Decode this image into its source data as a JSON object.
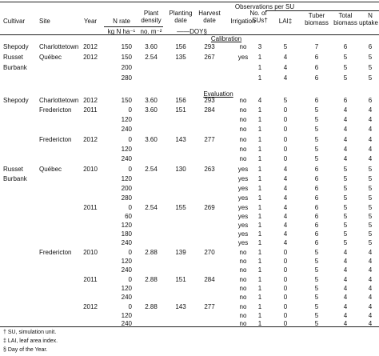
{
  "table": {
    "header": {
      "cultivar": "Cultivar",
      "site": "Site",
      "year": "Year",
      "n_rate": "N rate",
      "n_rate_unit": "kg N ha⁻¹",
      "plant_density_1": "Plant",
      "plant_density_2": "density",
      "plant_density_unit": "no. m⁻²",
      "planting_1": "Planting",
      "planting_2": "date",
      "harvest_1": "Harvest",
      "harvest_2": "date",
      "doy_unit": "——DOY§",
      "irrigation": "Irrigation",
      "nsu_1": "No. of",
      "nsu_2": "SUs†",
      "obs_group": "Observations per SU",
      "lai": "LAI‡",
      "tuber_1": "Tuber",
      "tuber_2": "biomass",
      "total_1": "Total",
      "total_2": "biomass",
      "nupt_1": "N",
      "nupt_2": "uptake"
    },
    "sections": {
      "calibration": "Calibration",
      "evaluation": "Evaluation"
    },
    "rows": [
      {
        "cultivar": "Shepody",
        "site": "Charlottetown",
        "year": "2012",
        "n": "150",
        "density": "3.60",
        "plant": "156",
        "harvest": "293",
        "irr": "no",
        "nsu": "3",
        "lai": "5",
        "tuber": "7",
        "total": "6",
        "nupt": "6"
      },
      {
        "cultivar": "Russet",
        "site": "Québec",
        "year": "2012",
        "n": "150",
        "density": "2.54",
        "plant": "135",
        "harvest": "267",
        "irr": "yes",
        "nsu": "1",
        "lai": "4",
        "tuber": "6",
        "total": "5",
        "nupt": "5"
      },
      {
        "cultivar": "Burbank",
        "site": "",
        "year": "",
        "n": "200",
        "density": "",
        "plant": "",
        "harvest": "",
        "irr": "",
        "nsu": "1",
        "lai": "4",
        "tuber": "6",
        "total": "5",
        "nupt": "5"
      },
      {
        "cultivar": "",
        "site": "",
        "year": "",
        "n": "280",
        "density": "",
        "plant": "",
        "harvest": "",
        "irr": "",
        "nsu": "1",
        "lai": "4",
        "tuber": "6",
        "total": "5",
        "nupt": "5"
      },
      {
        "cultivar": "Shepody",
        "site": "Charlottetown",
        "year": "2012",
        "n": "150",
        "density": "3.60",
        "plant": "156",
        "harvest": "293",
        "irr": "no",
        "nsu": "4",
        "lai": "5",
        "tuber": "6",
        "total": "6",
        "nupt": "6"
      },
      {
        "cultivar": "",
        "site": "Fredericton",
        "year": "2011",
        "n": "0",
        "density": "3.60",
        "plant": "151",
        "harvest": "284",
        "irr": "no",
        "nsu": "1",
        "lai": "0",
        "tuber": "5",
        "total": "4",
        "nupt": "4"
      },
      {
        "cultivar": "",
        "site": "",
        "year": "",
        "n": "120",
        "density": "",
        "plant": "",
        "harvest": "",
        "irr": "no",
        "nsu": "1",
        "lai": "0",
        "tuber": "5",
        "total": "4",
        "nupt": "4"
      },
      {
        "cultivar": "",
        "site": "",
        "year": "",
        "n": "240",
        "density": "",
        "plant": "",
        "harvest": "",
        "irr": "no",
        "nsu": "1",
        "lai": "0",
        "tuber": "5",
        "total": "4",
        "nupt": "4"
      },
      {
        "cultivar": "",
        "site": "Fredericton",
        "year": "2012",
        "n": "0",
        "density": "3.60",
        "plant": "143",
        "harvest": "277",
        "irr": "no",
        "nsu": "1",
        "lai": "0",
        "tuber": "5",
        "total": "4",
        "nupt": "4"
      },
      {
        "cultivar": "",
        "site": "",
        "year": "",
        "n": "120",
        "density": "",
        "plant": "",
        "harvest": "",
        "irr": "no",
        "nsu": "1",
        "lai": "0",
        "tuber": "5",
        "total": "4",
        "nupt": "4"
      },
      {
        "cultivar": "",
        "site": "",
        "year": "",
        "n": "240",
        "density": "",
        "plant": "",
        "harvest": "",
        "irr": "no",
        "nsu": "1",
        "lai": "0",
        "tuber": "5",
        "total": "4",
        "nupt": "4"
      },
      {
        "cultivar": "Russet",
        "site": "Québec",
        "year": "2010",
        "n": "0",
        "density": "2.54",
        "plant": "130",
        "harvest": "263",
        "irr": "yes",
        "nsu": "1",
        "lai": "4",
        "tuber": "6",
        "total": "5",
        "nupt": "5"
      },
      {
        "cultivar": "Burbank",
        "site": "",
        "year": "",
        "n": "120",
        "density": "",
        "plant": "",
        "harvest": "",
        "irr": "yes",
        "nsu": "1",
        "lai": "4",
        "tuber": "6",
        "total": "5",
        "nupt": "5"
      },
      {
        "cultivar": "",
        "site": "",
        "year": "",
        "n": "200",
        "density": "",
        "plant": "",
        "harvest": "",
        "irr": "yes",
        "nsu": "1",
        "lai": "4",
        "tuber": "6",
        "total": "5",
        "nupt": "5"
      },
      {
        "cultivar": "",
        "site": "",
        "year": "",
        "n": "280",
        "density": "",
        "plant": "",
        "harvest": "",
        "irr": "yes",
        "nsu": "1",
        "lai": "4",
        "tuber": "6",
        "total": "5",
        "nupt": "5"
      },
      {
        "cultivar": "",
        "site": "",
        "year": "2011",
        "n": "0",
        "density": "2.54",
        "plant": "155",
        "harvest": "269",
        "irr": "yes",
        "nsu": "1",
        "lai": "4",
        "tuber": "6",
        "total": "5",
        "nupt": "5"
      },
      {
        "cultivar": "",
        "site": "",
        "year": "",
        "n": "60",
        "density": "",
        "plant": "",
        "harvest": "",
        "irr": "yes",
        "nsu": "1",
        "lai": "4",
        "tuber": "6",
        "total": "5",
        "nupt": "5"
      },
      {
        "cultivar": "",
        "site": "",
        "year": "",
        "n": "120",
        "density": "",
        "plant": "",
        "harvest": "",
        "irr": "yes",
        "nsu": "1",
        "lai": "4",
        "tuber": "6",
        "total": "5",
        "nupt": "5"
      },
      {
        "cultivar": "",
        "site": "",
        "year": "",
        "n": "180",
        "density": "",
        "plant": "",
        "harvest": "",
        "irr": "yes",
        "nsu": "1",
        "lai": "4",
        "tuber": "6",
        "total": "5",
        "nupt": "5"
      },
      {
        "cultivar": "",
        "site": "",
        "year": "",
        "n": "240",
        "density": "",
        "plant": "",
        "harvest": "",
        "irr": "yes",
        "nsu": "1",
        "lai": "4",
        "tuber": "6",
        "total": "5",
        "nupt": "5"
      },
      {
        "cultivar": "",
        "site": "Fredericton",
        "year": "2010",
        "n": "0",
        "density": "2.88",
        "plant": "139",
        "harvest": "270",
        "irr": "no",
        "nsu": "1",
        "lai": "0",
        "tuber": "5",
        "total": "4",
        "nupt": "4"
      },
      {
        "cultivar": "",
        "site": "",
        "year": "",
        "n": "120",
        "density": "",
        "plant": "",
        "harvest": "",
        "irr": "no",
        "nsu": "1",
        "lai": "0",
        "tuber": "5",
        "total": "4",
        "nupt": "4"
      },
      {
        "cultivar": "",
        "site": "",
        "year": "",
        "n": "240",
        "density": "",
        "plant": "",
        "harvest": "",
        "irr": "no",
        "nsu": "1",
        "lai": "0",
        "tuber": "5",
        "total": "4",
        "nupt": "4"
      },
      {
        "cultivar": "",
        "site": "",
        "year": "2011",
        "n": "0",
        "density": "2.88",
        "plant": "151",
        "harvest": "284",
        "irr": "no",
        "nsu": "1",
        "lai": "0",
        "tuber": "5",
        "total": "4",
        "nupt": "4"
      },
      {
        "cultivar": "",
        "site": "",
        "year": "",
        "n": "120",
        "density": "",
        "plant": "",
        "harvest": "",
        "irr": "no",
        "nsu": "1",
        "lai": "0",
        "tuber": "5",
        "total": "4",
        "nupt": "4"
      },
      {
        "cultivar": "",
        "site": "",
        "year": "",
        "n": "240",
        "density": "",
        "plant": "",
        "harvest": "",
        "irr": "no",
        "nsu": "1",
        "lai": "0",
        "tuber": "5",
        "total": "4",
        "nupt": "4"
      },
      {
        "cultivar": "",
        "site": "",
        "year": "2012",
        "n": "0",
        "density": "2.88",
        "plant": "143",
        "harvest": "277",
        "irr": "no",
        "nsu": "1",
        "lai": "0",
        "tuber": "5",
        "total": "4",
        "nupt": "4"
      },
      {
        "cultivar": "",
        "site": "",
        "year": "",
        "n": "120",
        "density": "",
        "plant": "",
        "harvest": "",
        "irr": "no",
        "nsu": "1",
        "lai": "0",
        "tuber": "5",
        "total": "4",
        "nupt": "4"
      },
      {
        "cultivar": "",
        "site": "",
        "year": "",
        "n": "240",
        "density": "",
        "plant": "",
        "harvest": "",
        "irr": "no",
        "nsu": "1",
        "lai": "0",
        "tuber": "5",
        "total": "4",
        "nupt": "4"
      }
    ],
    "footnotes": [
      "† SU, simulation unit.",
      "‡ LAI, leaf area index.",
      "§ Day of the Year."
    ]
  }
}
